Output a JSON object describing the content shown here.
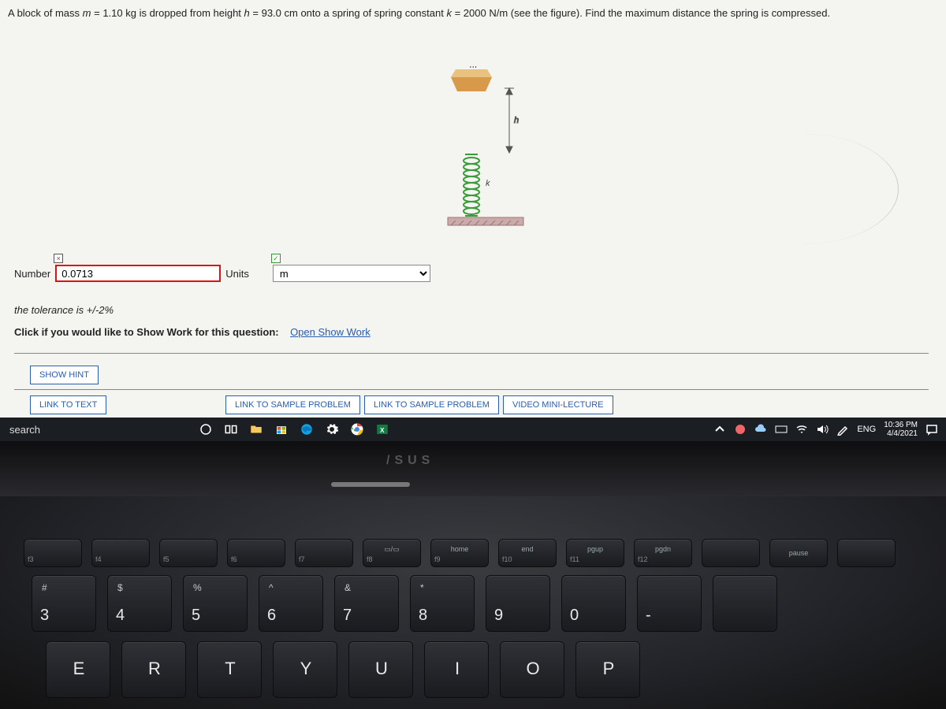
{
  "problem": {
    "text_prefix": "A block of mass ",
    "m_sym": "m",
    "eq1": " = 1.10 kg is dropped from height ",
    "h_sym": "h",
    "eq2": " = 93.0 cm onto a spring of spring constant ",
    "k_sym": "k",
    "eq3": " = 2000 N/m (see the figure). Find the maximum distance the spring is compressed."
  },
  "figure": {
    "m_label": "m",
    "h_label": "h",
    "k_label": "k",
    "block_color": "#d89a4a",
    "block_top_color": "#e8c27e",
    "spring_color": "#3a9a3a",
    "ground_color": "#b88",
    "arrow_color": "#555"
  },
  "answer": {
    "number_label": "Number",
    "number_value": "0.0713",
    "number_border": "#d11",
    "units_label": "Units",
    "units_value": "m",
    "tolerance_text": "the tolerance is +/-2%",
    "show_work_prefix": "Click if you would like to Show Work for this question:",
    "show_work_link": "Open Show Work"
  },
  "buttons": {
    "show_hint": "SHOW HINT",
    "link_text": "LINK TO TEXT",
    "link_sample1": "LINK TO SAMPLE PROBLEM",
    "link_sample2": "LINK TO SAMPLE PROBLEM",
    "video_lecture": "VIDEO MINI-LECTURE"
  },
  "taskbar": {
    "search_text": "search",
    "eng": "ENG",
    "time": "10:36 PM",
    "date": "4/4/2021"
  },
  "laptop": {
    "brand": "/SUS"
  },
  "keyboard": {
    "fn_row": [
      {
        "lbl": "f3",
        "sub": ""
      },
      {
        "lbl": "f4",
        "sub": ""
      },
      {
        "lbl": "f5",
        "sub": ""
      },
      {
        "lbl": "f6",
        "sub": ""
      },
      {
        "lbl": "f7",
        "sub": ""
      },
      {
        "lbl": "f8",
        "sub": "▭/▭"
      },
      {
        "lbl": "f9",
        "sub": "home"
      },
      {
        "lbl": "f10",
        "sub": "end"
      },
      {
        "lbl": "f11",
        "sub": "pgup"
      },
      {
        "lbl": "f12",
        "sub": "pgdn"
      },
      {
        "lbl": "",
        "sub": ""
      },
      {
        "lbl": "",
        "sub": "pause"
      },
      {
        "lbl": "",
        "sub": ""
      }
    ],
    "num_row": [
      {
        "num": "3",
        "sym": "#"
      },
      {
        "num": "4",
        "sym": "$"
      },
      {
        "num": "5",
        "sym": "%"
      },
      {
        "num": "6",
        "sym": "^"
      },
      {
        "num": "7",
        "sub": "&"
      },
      {
        "num": "8",
        "sym": "*"
      },
      {
        "num": "9",
        "sym": ""
      },
      {
        "num": "0",
        "sym": ""
      },
      {
        "num": "-",
        "sym": ""
      },
      {
        "num": "",
        "sym": ""
      }
    ],
    "letter_row": [
      "E",
      "R",
      "T",
      "Y",
      "U",
      "I",
      "O",
      "P"
    ]
  },
  "styling": {
    "link_button_color": "#2a5db0",
    "content_bg": "#f4f4f0",
    "taskbar_bg": "#1b1e23"
  }
}
